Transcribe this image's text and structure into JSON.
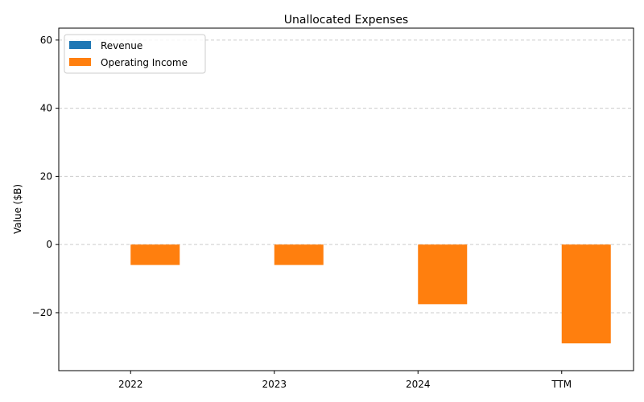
{
  "chart_data": {
    "type": "bar",
    "title": "Unallocated Expenses",
    "xlabel": "",
    "ylabel": "Value ($B)",
    "categories": [
      "2022",
      "2023",
      "2024",
      "TTM"
    ],
    "series": [
      {
        "name": "Revenue",
        "color": "#1f77b4",
        "values": [
          0,
          0,
          0,
          0
        ]
      },
      {
        "name": "Operating Income",
        "color": "#ff7f0e",
        "values": [
          -6.0,
          -6.0,
          -17.5,
          -29.0
        ]
      }
    ],
    "ylim": [
      -37,
      63.5
    ],
    "yticks": [
      -20,
      0,
      20,
      40,
      60
    ],
    "ytick_labels": [
      "−20",
      "0",
      "20",
      "40",
      "60"
    ],
    "grid": "y-dashed",
    "legend_position": "top-left"
  }
}
